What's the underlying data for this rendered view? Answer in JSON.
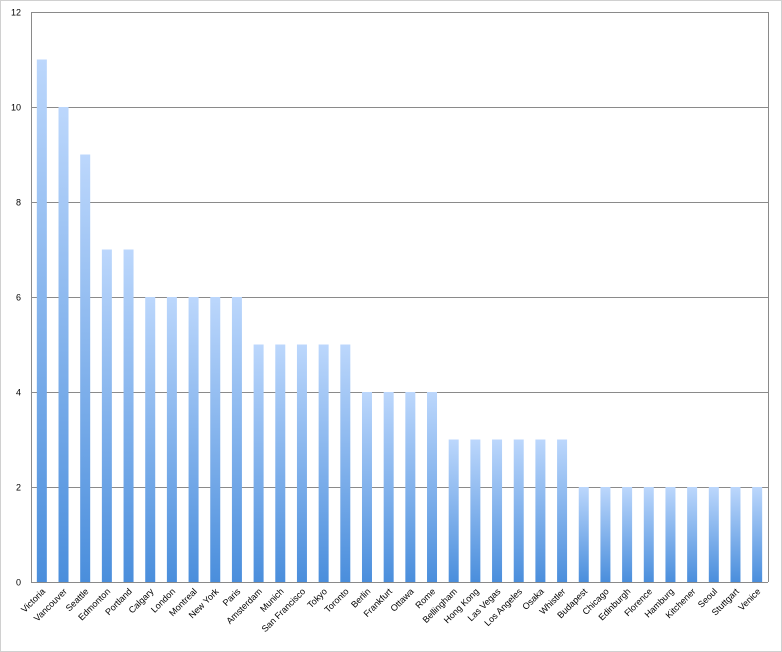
{
  "chart_data": {
    "type": "bar",
    "categories": [
      "Victoria",
      "Vancouver",
      "Seattle",
      "Edmonton",
      "Portland",
      "Calgary",
      "London",
      "Montreal",
      "New York",
      "Paris",
      "Amsterdam",
      "Munich",
      "San Francisco",
      "Tokyo",
      "Toronto",
      "Berlin",
      "Frankfurt",
      "Ottawa",
      "Rome",
      "Bellingham",
      "Hong Kong",
      "Las Vegas",
      "Los Angeles",
      "Osaka",
      "Whistler",
      "Budapest",
      "Chicago",
      "Edinburgh",
      "Florence",
      "Hamburg",
      "Kitchener",
      "Seoul",
      "Stuttgart",
      "Venice"
    ],
    "values": [
      11,
      10,
      9,
      7,
      7,
      6,
      6,
      6,
      6,
      6,
      5,
      5,
      5,
      5,
      5,
      4,
      4,
      4,
      4,
      3,
      3,
      3,
      3,
      3,
      3,
      2,
      2,
      2,
      2,
      2,
      2,
      2,
      2,
      2
    ],
    "color": "#4a8edc",
    "ylim": [
      0,
      12
    ],
    "yticks": [
      0,
      2,
      4,
      6,
      8,
      10,
      12
    ],
    "grid": true
  }
}
